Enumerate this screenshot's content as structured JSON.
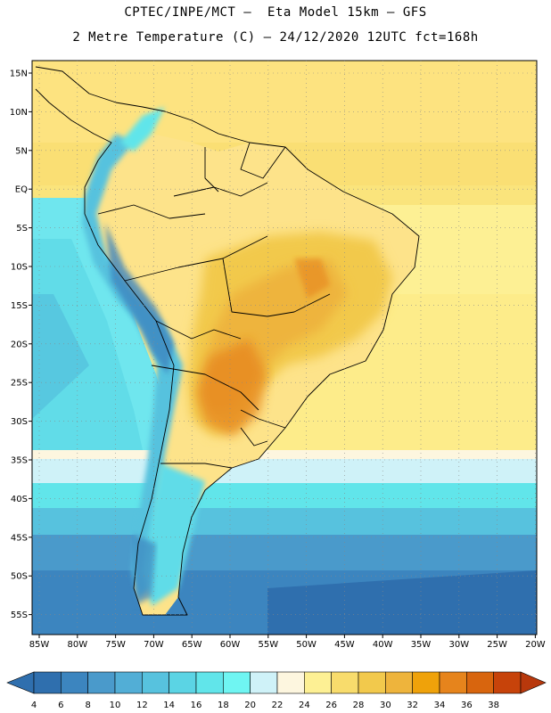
{
  "header": {
    "line1": "CPTEC/INPE/MCT –  Eta Model 15km – GFS",
    "line2": "2 Metre Temperature (C) – 24/12/2020 12UTC fct=168h"
  },
  "map": {
    "lat_ticks": [
      "15N",
      "10N",
      "5N",
      "EQ",
      "5S",
      "10S",
      "15S",
      "20S",
      "25S",
      "30S",
      "35S",
      "40S",
      "45S",
      "50S",
      "55S"
    ],
    "lon_ticks": [
      "85W",
      "80W",
      "75W",
      "70W",
      "65W",
      "60W",
      "55W",
      "50W",
      "45W",
      "40W",
      "35W",
      "30W",
      "25W",
      "20W"
    ],
    "grid": true
  },
  "colorbar": {
    "labels": [
      "4",
      "6",
      "8",
      "10",
      "12",
      "14",
      "16",
      "18",
      "20",
      "22",
      "24",
      "26",
      "28",
      "30",
      "32",
      "34",
      "36",
      "38"
    ],
    "colors": [
      "#2f6fae",
      "#3c85bf",
      "#4a9acb",
      "#52aed6",
      "#57c2de",
      "#5bd4e4",
      "#61e5ea",
      "#6ff5f2",
      "#cff2f8",
      "#fdf6df",
      "#fdf094",
      "#f8dc6c",
      "#f2c94c",
      "#eeb43c",
      "#efa20a",
      "#e6841c",
      "#d8650e",
      "#c7430a",
      "#b8380c"
    ]
  }
}
